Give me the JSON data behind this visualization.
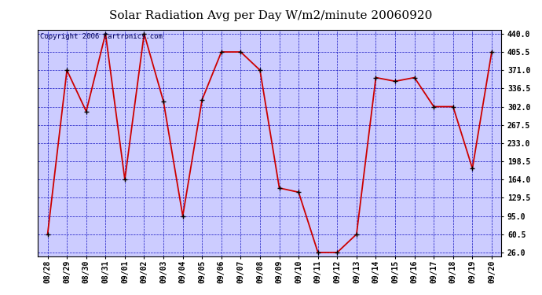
{
  "title": "Solar Radiation Avg per Day W/m2/minute 20060920",
  "copyright_text": "Copyright 2006 Cartronics.com",
  "x_labels": [
    "08/28",
    "08/29",
    "08/30",
    "08/31",
    "09/01",
    "09/02",
    "09/03",
    "09/04",
    "09/05",
    "09/06",
    "09/07",
    "09/08",
    "09/09",
    "09/10",
    "09/11",
    "09/12",
    "09/13",
    "09/14",
    "09/15",
    "09/16",
    "09/17",
    "09/18",
    "09/19",
    "09/20"
  ],
  "y_values": [
    60.5,
    371.0,
    293.0,
    440.0,
    164.0,
    440.0,
    312.0,
    95.0,
    315.0,
    405.5,
    405.5,
    371.0,
    148.0,
    140.0,
    26.0,
    26.0,
    60.5,
    357.0,
    350.0,
    357.0,
    302.0,
    302.0,
    185.0,
    405.5
  ],
  "yticks": [
    26.0,
    60.5,
    95.0,
    129.5,
    164.0,
    198.5,
    233.0,
    267.5,
    302.0,
    336.5,
    371.0,
    405.5,
    440.0
  ],
  "ymin": 26.0,
  "ymax": 440.0,
  "line_color": "#cc0000",
  "marker_color": "#000000",
  "fig_bg_color": "#ffffff",
  "plot_bg_color": "#ccccff",
  "grid_color": "#0000bb",
  "title_fontsize": 11,
  "copyright_fontsize": 6.5,
  "tick_fontsize": 7,
  "ytick_fontsize": 7
}
